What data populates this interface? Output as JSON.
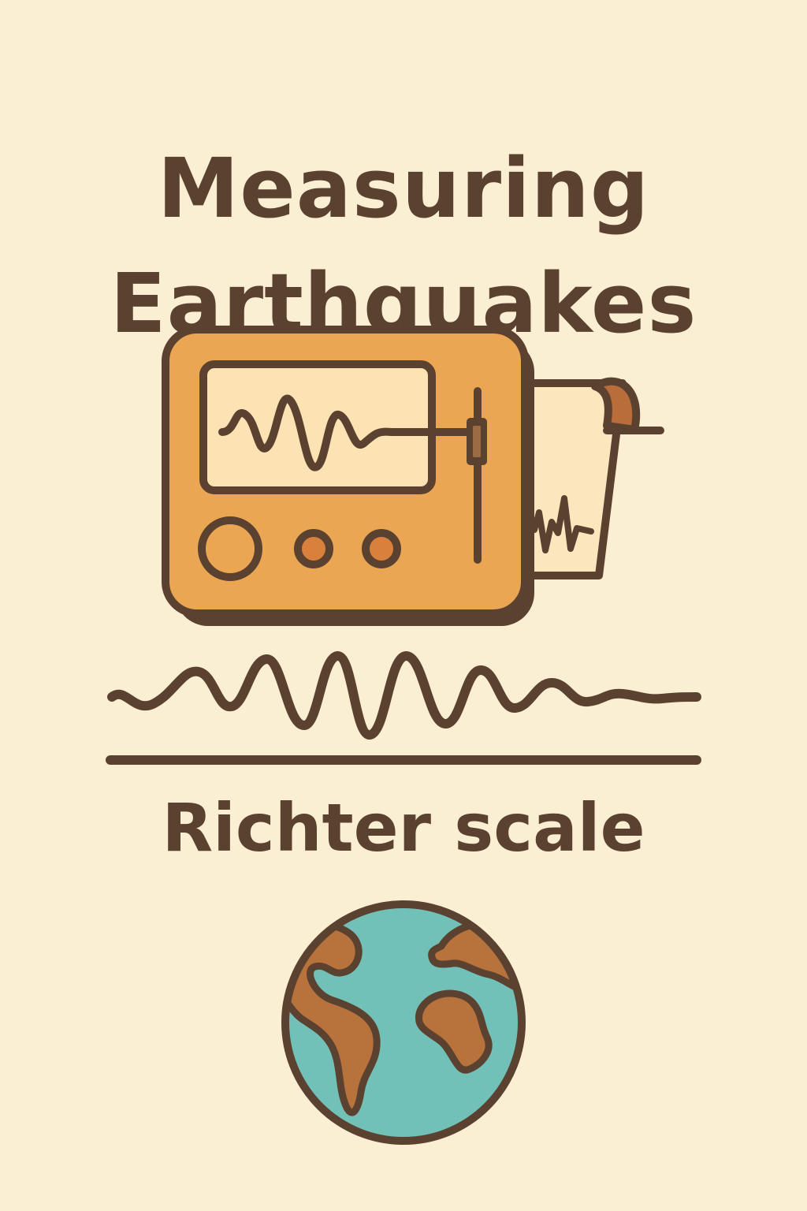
{
  "title": {
    "line1": "Measuring",
    "line2": "Earthquakes"
  },
  "subtitle": "Richter scale",
  "colors": {
    "background": "#fbefd3",
    "ink": "#5b4230",
    "device_body": "#eba653",
    "device_shadow": "#5b4230",
    "screen": "#fde3b3",
    "paper": "#fbe7bd",
    "paper_roll": "#b86d3a",
    "knob": "#d9803c",
    "ocean": "#72c1b8",
    "land": "#b8723c"
  },
  "icons": [
    "seismograph-icon",
    "seismic-wave-icon",
    "globe-icon"
  ]
}
